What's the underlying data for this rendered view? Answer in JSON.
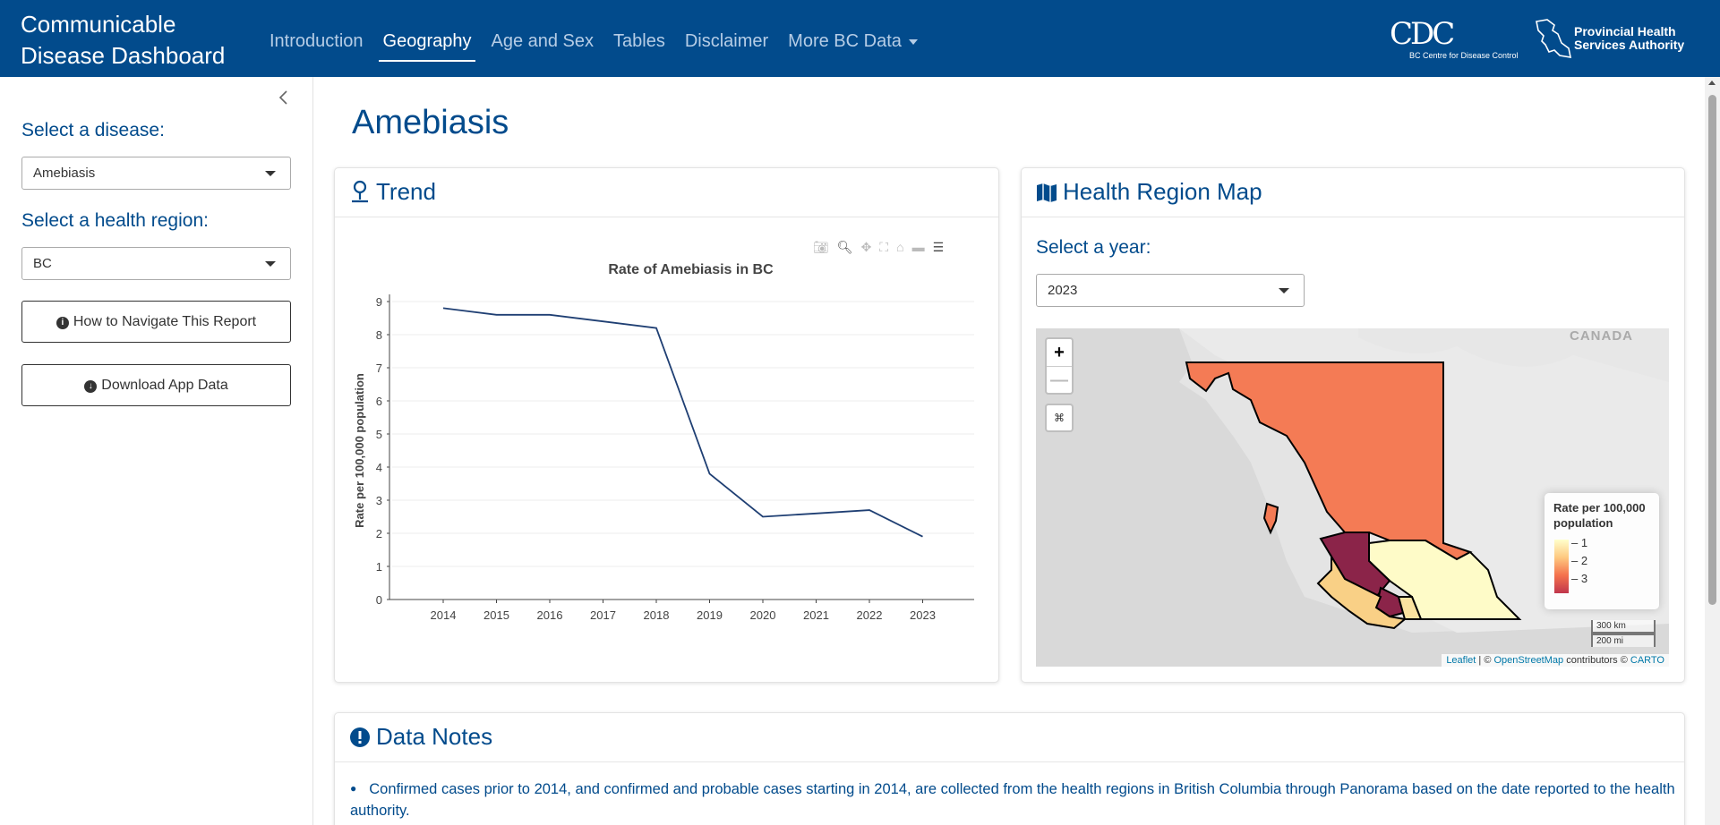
{
  "navbar": {
    "brand_line1": "Communicable",
    "brand_line2": "Disease Dashboard",
    "links": [
      "Introduction",
      "Geography",
      "Age and Sex",
      "Tables",
      "Disclaimer",
      "More BC Data"
    ],
    "active": "Geography",
    "bccdc_logo_text": "BC Centre for Disease Control",
    "phsa_logo_line1": "Provincial Health",
    "phsa_logo_line2": "Services Authority"
  },
  "sidebar": {
    "disease_label": "Select a disease:",
    "disease_value": "Amebiasis",
    "region_label": "Select a health region:",
    "region_value": "BC",
    "navigate_button": "How to Navigate This Report",
    "download_button": "Download App Data"
  },
  "main": {
    "title": "Amebiasis",
    "trend_card_title": "Trend",
    "map_card_title": "Health Region Map",
    "year_label": "Select a year:",
    "year_value": "2023",
    "notes_card_title": "Data Notes",
    "notes": [
      "Confirmed cases prior to 2014, and confirmed and probable cases starting in 2014, are collected from the health regions in British Columbia through Panorama based on the date reported to the health authority."
    ]
  },
  "map": {
    "country_label": "CANADA",
    "zoom_in": "+",
    "zoom_out": "—",
    "legend_title_line1": "Rate per 100,000",
    "legend_title_line2": "population",
    "legend_ticks": [
      "1",
      "2",
      "3"
    ],
    "scale_km": "300 km",
    "scale_mi": "200 mi",
    "attribution_leaflet": "Leaflet",
    "attribution_sep": " | © ",
    "attribution_osm": "OpenStreetMap",
    "attribution_mid": " contributors © ",
    "attribution_carto": "CARTO",
    "colors": {
      "north": "#f47b55",
      "interior": "#fefbc8",
      "vancouver_coastal": "#8b2449",
      "island": "#f9d086",
      "fraser": "#fbe3a0"
    }
  },
  "chart_data": {
    "type": "line",
    "title": "Rate of Amebiasis in BC",
    "xlabel": "",
    "ylabel": "Rate per 100,000 population",
    "x": [
      "2014",
      "2015",
      "2016",
      "2017",
      "2018",
      "2019",
      "2020",
      "2021",
      "2022",
      "2023"
    ],
    "values": [
      8.8,
      8.6,
      8.6,
      8.4,
      8.2,
      3.8,
      2.5,
      2.6,
      2.7,
      1.9
    ],
    "ylim": [
      0,
      9
    ],
    "yticks": [
      "0",
      "1",
      "2",
      "3",
      "4",
      "5",
      "6",
      "7",
      "8",
      "9"
    ],
    "grid": true,
    "line_color": "#1f3f73"
  }
}
